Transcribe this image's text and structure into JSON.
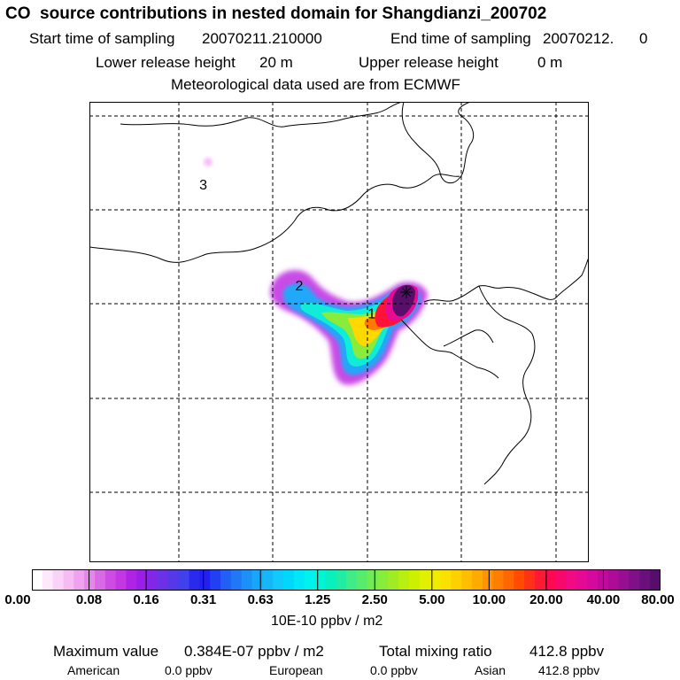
{
  "header": {
    "title": "CO  source contributions in nested domain for Shangdianzi_200702",
    "start_label": "Start time of sampling",
    "start_value": "20070211.210000",
    "end_label": "End time of sampling",
    "end_value": "20070212.",
    "end_suffix": "0",
    "lower_label": "Lower release height",
    "lower_value": "20 m",
    "upper_label": "Upper release height",
    "upper_value": "0 m",
    "met_line": "Meteorological data used are from ECMWF"
  },
  "map": {
    "labels": [
      {
        "text": "1",
        "lon": 0.565,
        "lat": 0.47
      },
      {
        "text": "2",
        "lon": 0.42,
        "lat": 0.41
      },
      {
        "text": "3",
        "lon": 0.228,
        "lat": 0.19
      }
    ]
  },
  "colorbar": {
    "ticks": [
      "0.00",
      "0.08",
      "0.16",
      "0.31",
      "0.63",
      "1.25",
      "2.50",
      "5.00",
      "10.00",
      "20.00",
      "40.00",
      "80.00"
    ],
    "colors": [
      "#ffffff",
      "#fde8fc",
      "#f9d2f8",
      "#f5bcf4",
      "#efa2ef",
      "#e486ea",
      "#d96ae6",
      "#cd4de4",
      "#c236e4",
      "#b022e4",
      "#9b1ee6",
      "#8327e6",
      "#6c30e6",
      "#5638e8",
      "#4040ec",
      "#2a2aee",
      "#2020f0",
      "#2040f2",
      "#2060f4",
      "#2078f6",
      "#1a90f8",
      "#18a6fa",
      "#16b6fb",
      "#12c8fc",
      "#00d8fb",
      "#00e8f8",
      "#00f2ec",
      "#00f4d6",
      "#08f0be",
      "#20eca4",
      "#40ec88",
      "#58ec6e",
      "#70ec52",
      "#88ec3a",
      "#a0ec24",
      "#b8ee10",
      "#ccf000",
      "#e0f000",
      "#f0ec00",
      "#fce000",
      "#ffd000",
      "#ffbe00",
      "#ffaa00",
      "#ff9400",
      "#ff7e00",
      "#ff6600",
      "#ff4c00",
      "#ff3216",
      "#ff1a34",
      "#ff0a50",
      "#f8086c",
      "#f00a84",
      "#e40a94",
      "#d40a9c",
      "#c00a9c",
      "#ac0c98",
      "#960e92",
      "#801088",
      "#6a107c",
      "#560e6c"
    ],
    "units": "10E-10 ppbv / m2"
  },
  "summary": {
    "max_label": "Maximum value",
    "max_value": "0.384E-07 ppbv / m2",
    "total_label": "Total mixing ratio",
    "total_value": "412.8 ppbv",
    "american_label": "American",
    "american_value": "0.0 ppbv",
    "european_label": "European",
    "european_value": "0.0 ppbv",
    "asian_label": "Asian",
    "asian_value": "412.8 ppbv"
  }
}
